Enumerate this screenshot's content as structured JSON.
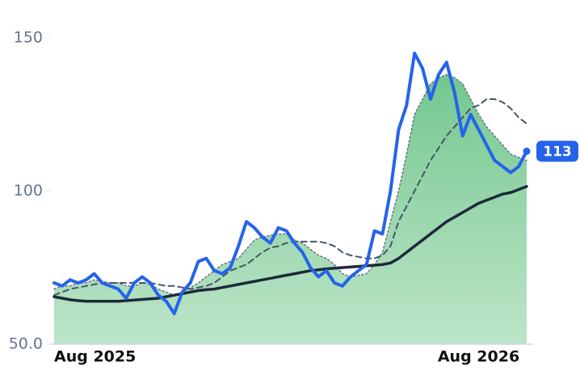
{
  "chart_data": {
    "type": "line",
    "categories": [
      "Aug 2025",
      null,
      null,
      null,
      null,
      null,
      null,
      null,
      null,
      null,
      null,
      null,
      null,
      null,
      null,
      null,
      null,
      null,
      null,
      null,
      null,
      null,
      null,
      null,
      null,
      null,
      null,
      null,
      null,
      null,
      null,
      null,
      null,
      null,
      null,
      null,
      null,
      null,
      null,
      null,
      null,
      null,
      null,
      null,
      null,
      null,
      null,
      null,
      null,
      null,
      null,
      null,
      null,
      "Aug 2026",
      null,
      null,
      null,
      null,
      null,
      null
    ],
    "ylim": [
      50,
      150
    ],
    "yticks": [
      {
        "value": 50,
        "label": "50.0"
      },
      100,
      150
    ],
    "series": [
      {
        "color": "#2563eb",
        "width": 4,
        "values": [
          70,
          69,
          71,
          70,
          71,
          73,
          70,
          69,
          68,
          65,
          70,
          72,
          70,
          66,
          64,
          60,
          67,
          70,
          77,
          78,
          74,
          73,
          75,
          82,
          90,
          88,
          85,
          83,
          88,
          87,
          83,
          80,
          75,
          72,
          74,
          70,
          69,
          72,
          74,
          76,
          87,
          86,
          100,
          120,
          128,
          145,
          140,
          130,
          138,
          142,
          132,
          118,
          125,
          120,
          115,
          110,
          108,
          106,
          108,
          113
        ]
      },
      {
        "color": "#1e293b",
        "width": 3.5,
        "values": [
          65.5,
          65,
          64.5,
          64.2,
          64,
          64,
          64,
          64,
          64,
          64.2,
          64.4,
          64.6,
          64.8,
          65,
          65.5,
          66,
          66.5,
          67,
          67.5,
          67.8,
          68,
          68.5,
          69,
          69.5,
          70,
          70.5,
          71,
          71.5,
          72,
          72.5,
          73,
          73.5,
          74,
          74.3,
          74.6,
          74.8,
          75,
          75.2,
          75.4,
          75.6,
          75.8,
          76,
          76.5,
          78,
          80,
          82,
          84,
          86,
          88,
          90,
          91.5,
          93,
          94.5,
          96,
          97,
          98,
          99,
          99.5,
          100.5,
          101.5
        ]
      },
      {
        "color": "#475569",
        "width": 2,
        "dash": "7 5",
        "values": [
          66,
          67,
          68,
          68.5,
          69,
          69.5,
          70,
          70,
          70,
          70,
          70,
          70,
          70,
          69.5,
          69,
          69,
          68.5,
          68,
          68.5,
          69,
          70,
          72,
          74,
          75,
          76,
          78,
          80,
          81.5,
          82,
          83,
          83.5,
          83.5,
          83.5,
          83.5,
          83,
          82,
          80,
          79,
          78.5,
          78,
          78,
          79,
          82,
          90,
          95,
          100,
          105,
          110,
          114,
          118,
          121,
          124,
          127,
          128,
          130,
          130,
          129,
          127,
          124,
          122
        ]
      },
      {
        "color": "#64748b",
        "width": 1.5,
        "dash": "2 3",
        "fill": "#86cf9c",
        "values": [
          68,
          69,
          69,
          70,
          70,
          71,
          70.5,
          70,
          70,
          69,
          69,
          70,
          69.5,
          68,
          67,
          66,
          67,
          68.5,
          70,
          72,
          74,
          76,
          77,
          78,
          81,
          84,
          85,
          85.5,
          86,
          86,
          84,
          83,
          81,
          79,
          78,
          76,
          73,
          72,
          72.5,
          73,
          76,
          80,
          90,
          100,
          112,
          125,
          130,
          135,
          137,
          138,
          137,
          135,
          130,
          125,
          121,
          118,
          115,
          112,
          111,
          110
        ]
      }
    ]
  }
}
